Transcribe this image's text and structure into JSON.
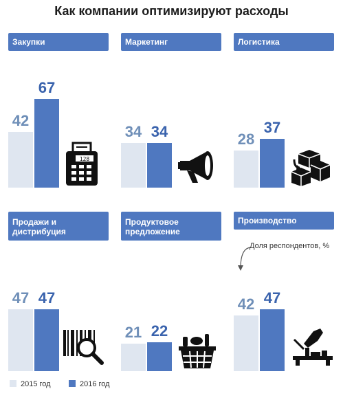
{
  "title": "Как компании оптимизируют расходы",
  "note": "Доля респондентов, %",
  "colors": {
    "y2015": "#dfe6f0",
    "y2016": "#4f78c0",
    "label2015": "#6f8fb8",
    "label2016": "#3a63ad"
  },
  "icons": [
    "cash-register-icon",
    "megaphone-icon",
    "boxes-icon",
    "barcode-magnifier-icon",
    "shopping-basket-icon",
    "manufacturing-machine-icon"
  ],
  "chart_data": {
    "type": "bar",
    "title": "Как компании оптимизируют расходы",
    "ylabel": "Доля респондентов, %",
    "ylim": [
      0,
      70
    ],
    "categories": [
      "Закупки",
      "Маркетинг",
      "Логистика",
      "Продажи и дистрибуция",
      "Продуктовое предложение",
      "Производство"
    ],
    "series": [
      {
        "name": "2015 год",
        "values": [
          42,
          34,
          28,
          47,
          21,
          42
        ]
      },
      {
        "name": "2016 год",
        "values": [
          67,
          34,
          37,
          47,
          22,
          47
        ]
      }
    ],
    "legend": "bottom-left",
    "grid": false
  }
}
